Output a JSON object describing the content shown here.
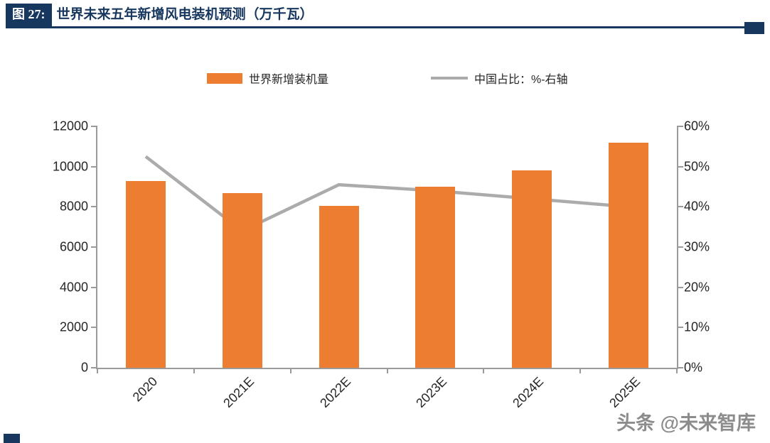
{
  "header": {
    "figure_label": "图 27:",
    "title": "世界未来五年新增风电装机预测（万千瓦）"
  },
  "watermark": {
    "text": "头条 @未来智库"
  },
  "colors": {
    "navy": "#17375E",
    "bar": "#ED7D31",
    "line": "#ABABAB",
    "axis": "#9A9A9A"
  },
  "chart_data": {
    "type": "bar+line",
    "title": "世界未来五年新增风电装机预测（万千瓦）",
    "categories": [
      "2020",
      "2021E",
      "2022E",
      "2023E",
      "2024E",
      "2025E"
    ],
    "series": [
      {
        "name": "世界新增装机量",
        "type": "bar",
        "axis": "left",
        "color": "#ED7D31",
        "values": [
          9300,
          8700,
          8050,
          9000,
          9800,
          11200
        ]
      },
      {
        "name": "中国占比：%-右轴",
        "type": "line",
        "axis": "right",
        "color": "#ABABAB",
        "values": [
          52.5,
          34,
          45.5,
          44,
          42,
          40
        ]
      }
    ],
    "left_axis": {
      "min": 0,
      "max": 12000,
      "step": 2000,
      "ticks": [
        "0",
        "2000",
        "4000",
        "6000",
        "8000",
        "10000",
        "12000"
      ]
    },
    "right_axis": {
      "min": 0,
      "max": 60,
      "step": 10,
      "ticks": [
        "0%",
        "10%",
        "20%",
        "30%",
        "40%",
        "50%",
        "60%"
      ]
    },
    "legend_position": "top",
    "grid": false
  }
}
